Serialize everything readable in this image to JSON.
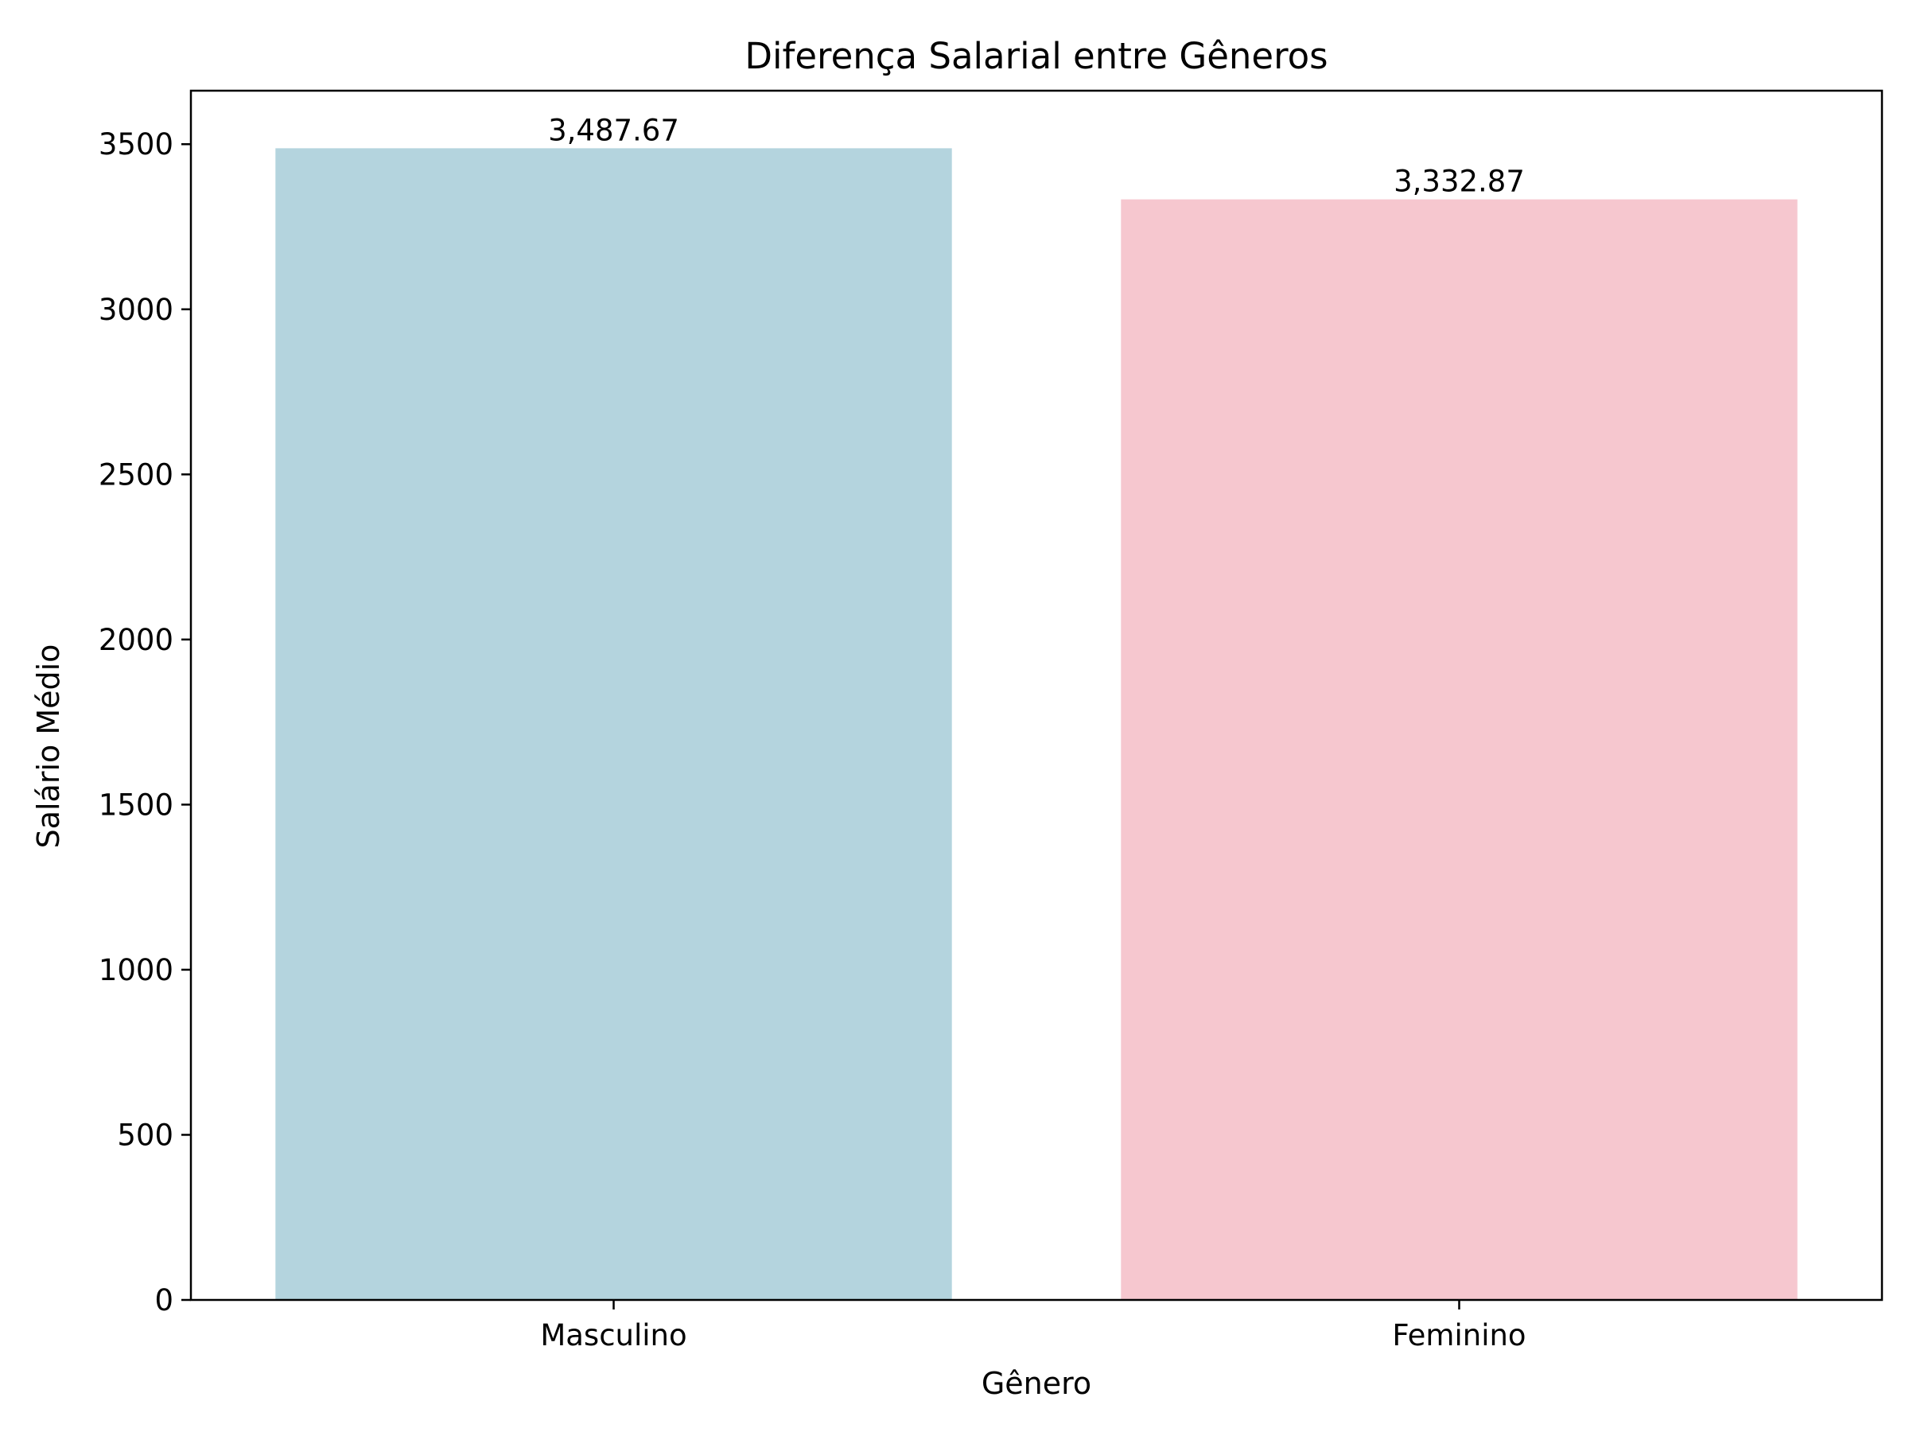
{
  "chart_data": {
    "type": "bar",
    "title": "Diferença Salarial entre Gêneros",
    "xlabel": "Gênero",
    "ylabel": "Salário Médio",
    "categories": [
      "Masculino",
      "Feminino"
    ],
    "values": [
      3487.67,
      3332.87
    ],
    "value_labels": [
      "3,487.67",
      "3,332.87"
    ],
    "colors": [
      "#b4d4de",
      "#f6c7cf"
    ],
    "ylim": [
      0,
      3662
    ],
    "yticks": [
      0,
      500,
      1000,
      1500,
      2000,
      2500,
      3000,
      3500
    ],
    "grid": false,
    "legend": "none"
  }
}
